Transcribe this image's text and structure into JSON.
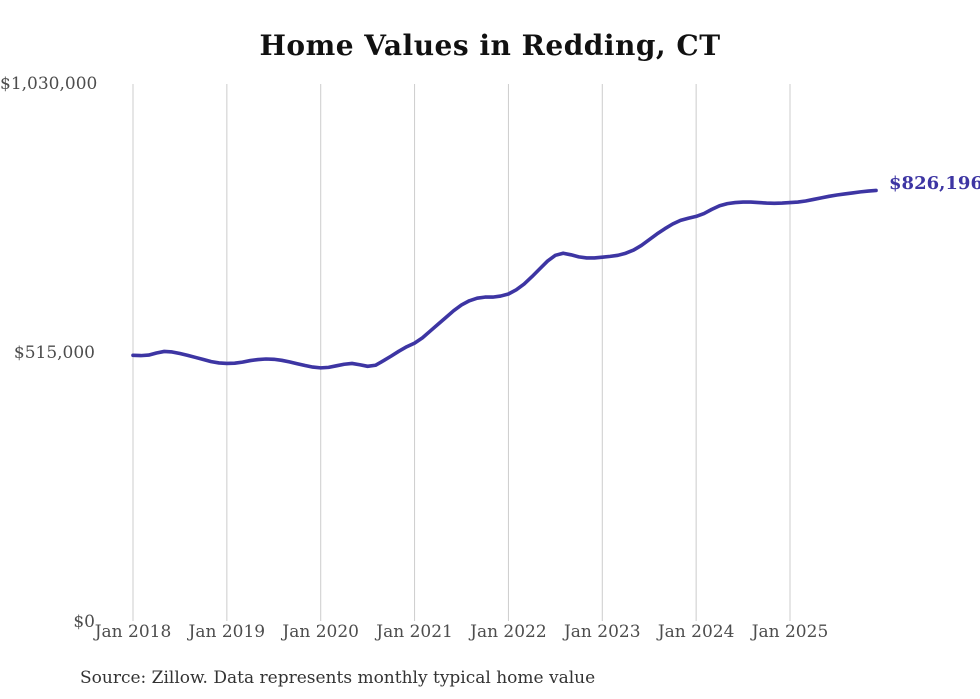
{
  "page": {
    "title": "Home Values in Redding, CT",
    "source_note": "Source: Zillow. Data represents monthly typical home value"
  },
  "chart_data": {
    "type": "line",
    "title": "Home Values in Redding, CT",
    "x_tick_labels": [
      "Jan 2018",
      "Jan 2019",
      "Jan 2020",
      "Jan 2021",
      "Jan 2022",
      "Jan 2023",
      "Jan 2024",
      "Jan 2025"
    ],
    "y_axis": {
      "ticks": [
        {
          "label": "$0",
          "value": 0
        },
        {
          "label": "$515,000",
          "value": 515000
        },
        {
          "label": "$1,030,000",
          "value": 1030000
        }
      ],
      "ylim": [
        0,
        1030000
      ]
    },
    "x_range": {
      "start": "Jan 2018",
      "end": "Dec 2025",
      "interval": "monthly"
    },
    "grid": "vertical-only",
    "legend": "none",
    "end_label": "$826,196",
    "latest_value": 826196,
    "series": [
      {
        "name": "Monthly typical home value",
        "color": "#3d35a3",
        "values": [
          510500,
          510000,
          511000,
          515000,
          518000,
          517000,
          514000,
          510500,
          506500,
          502500,
          498500,
          496000,
          495000,
          495500,
          497500,
          500500,
          502500,
          503500,
          503000,
          501000,
          498000,
          494500,
          491000,
          488000,
          486500,
          487500,
          490500,
          493500,
          495000,
          492500,
          489500,
          491500,
          500000,
          509000,
          518500,
          527000,
          534000,
          544000,
          557000,
          570000,
          583000,
          596000,
          607000,
          615000,
          620000,
          622000,
          622000,
          624000,
          628000,
          636000,
          647000,
          661000,
          676000,
          691000,
          702000,
          706000,
          703000,
          699000,
          697000,
          697000,
          698500,
          700000,
          702000,
          706000,
          712000,
          721000,
          732000,
          743000,
          753000,
          762000,
          769000,
          773000,
          776500,
          782000,
          790000,
          797000,
          801000,
          803000,
          804000,
          804000,
          803000,
          802000,
          801500,
          802000,
          803000,
          804000,
          806000,
          809000,
          812000,
          815000,
          817500,
          819500,
          821500,
          823500,
          825000,
          826196
        ]
      }
    ],
    "colors": {
      "line": "#3d35a3",
      "gridline": "#cccccc",
      "axis_text": "#4d4d4d",
      "title_text": "#111111",
      "source_text": "#333333",
      "end_label_text": "#3d35a3",
      "background": "#ffffff"
    }
  }
}
